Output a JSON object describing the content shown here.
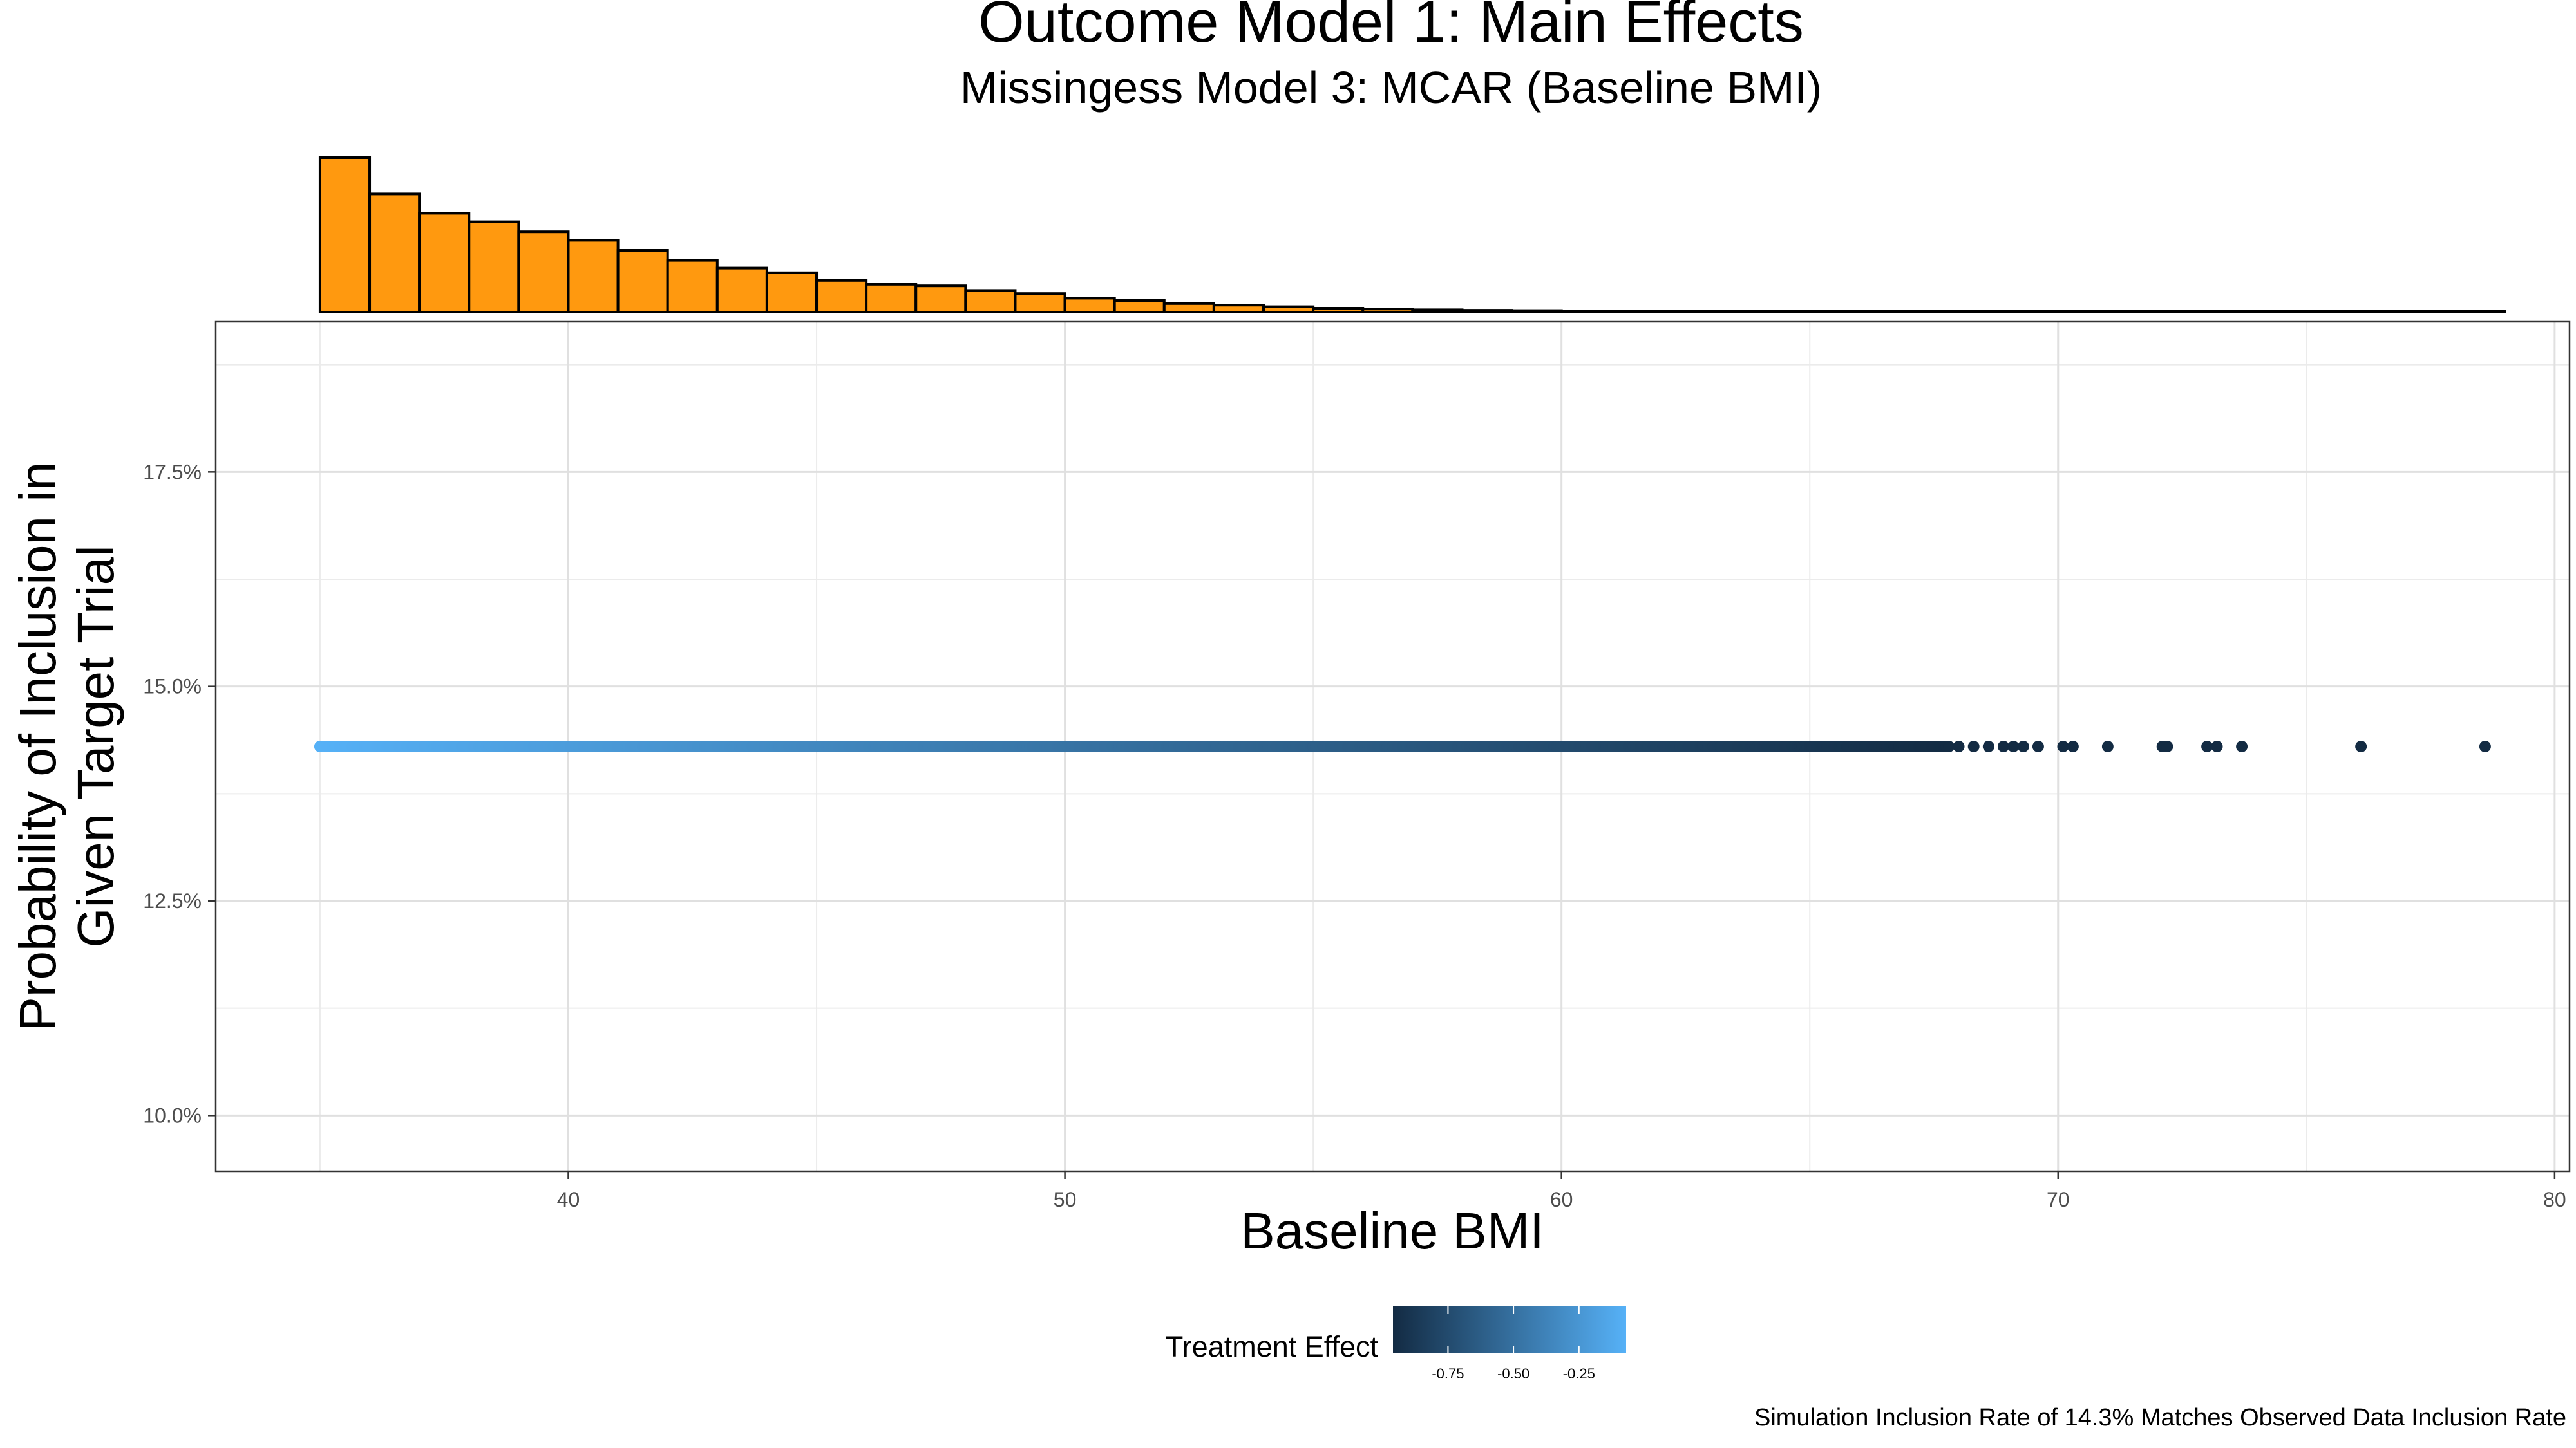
{
  "chart_data": {
    "type": "scatter",
    "title": "Outcome Model 1: Main Effects",
    "subtitle": "Missingess Model 3: MCAR (Baseline BMI)",
    "xlabel": "Baseline BMI",
    "ylabel": [
      "Probability of Inclusion in",
      "Given Target Trial"
    ],
    "caption": "Simulation Inclusion Rate of 14.3% Matches Observed Data Inclusion Rate",
    "xlim": [
      32.9,
      80.3
    ],
    "ylim": [
      9.35,
      19.25
    ],
    "x_ticks": [
      40,
      50,
      60,
      70,
      80
    ],
    "x_tick_labels": [
      "40",
      "50",
      "60",
      "70",
      "80"
    ],
    "y_ticks": [
      10.0,
      12.5,
      15.0,
      17.5
    ],
    "y_tick_labels": [
      "10.0%",
      "12.5%",
      "15.0%",
      "17.5%"
    ],
    "grid": true,
    "constant_y": 14.3,
    "dense_range": [
      35.0,
      67.8
    ],
    "outlier_points_x": [
      68.0,
      68.3,
      68.6,
      68.9,
      69.1,
      69.3,
      69.6,
      70.1,
      70.3,
      71.0,
      72.1,
      72.2,
      73.0,
      73.2,
      73.7,
      76.1,
      78.6
    ],
    "point_color_low": "#132B43",
    "point_color_high": "#56B1F7",
    "legend": {
      "title": "Treatment Effect",
      "position": "bottom",
      "tick_labels": [
        "-0.75",
        "-0.50",
        "-0.25"
      ],
      "tick_values": [
        -0.75,
        -0.5,
        -0.25
      ],
      "range": [
        -0.96,
        -0.07
      ]
    },
    "histogram": {
      "bin_start": 35.0,
      "bin_width": 1.0,
      "counts": [
        1000,
        765,
        640,
        585,
        520,
        465,
        400,
        335,
        285,
        255,
        205,
        180,
        170,
        140,
        120,
        90,
        75,
        55,
        45,
        35,
        25,
        20,
        15,
        12,
        10,
        8,
        8,
        6,
        6,
        5,
        4,
        4,
        3,
        3,
        2,
        2,
        2,
        2,
        1,
        1,
        1,
        1,
        1,
        1
      ],
      "fill": "#FF990F",
      "stroke": "#000000"
    }
  }
}
